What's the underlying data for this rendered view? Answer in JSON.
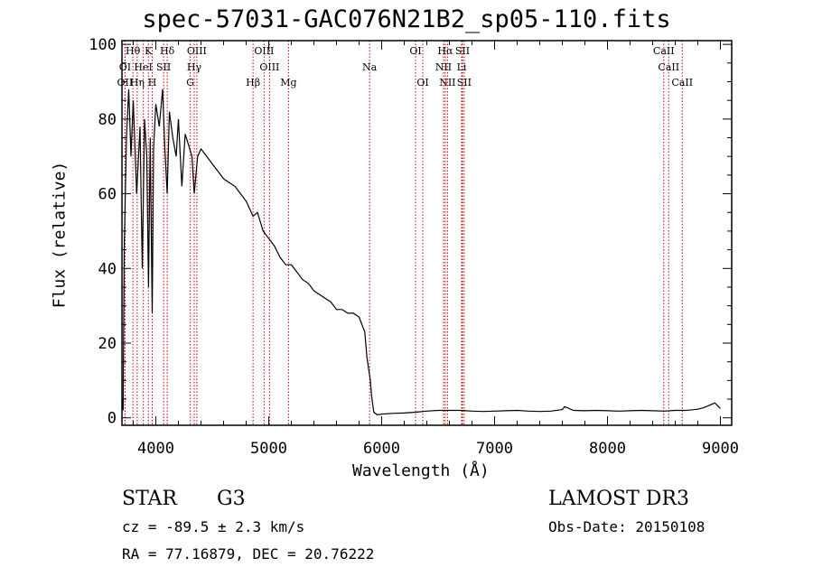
{
  "title": "spec-57031-GAC076N21B2_sp05-110.fits",
  "chart_data": {
    "type": "line",
    "title": "spec-57031-GAC076N21B2_sp05-110.fits",
    "xlabel": "Wavelength (Å)",
    "ylabel": "Flux (relative)",
    "xlim": [
      3700,
      9100
    ],
    "ylim": [
      -2,
      101
    ],
    "xticks": [
      4000,
      5000,
      6000,
      7000,
      8000,
      9000
    ],
    "yticks": [
      0,
      20,
      40,
      60,
      80,
      100
    ],
    "series": [
      {
        "name": "spectrum",
        "x": [
          3700,
          3710,
          3720,
          3740,
          3760,
          3780,
          3800,
          3830,
          3860,
          3880,
          3900,
          3920,
          3935,
          3950,
          3968,
          3980,
          4000,
          4030,
          4060,
          4080,
          4101,
          4120,
          4150,
          4180,
          4200,
          4230,
          4260,
          4290,
          4320,
          4340,
          4370,
          4400,
          4450,
          4500,
          4550,
          4600,
          4650,
          4700,
          4750,
          4800,
          4861,
          4900,
          4950,
          5000,
          5050,
          5100,
          5150,
          5200,
          5250,
          5300,
          5350,
          5400,
          5450,
          5500,
          5550,
          5600,
          5650,
          5700,
          5750,
          5800,
          5850,
          5870,
          5890,
          5900,
          5910,
          5930,
          5960,
          6000,
          6100,
          6200,
          6300,
          6400,
          6500,
          6600,
          6700,
          6800,
          6900,
          7000,
          7100,
          7200,
          7300,
          7400,
          7500,
          7600,
          7620,
          7700,
          7800,
          7900,
          8000,
          8100,
          8200,
          8300,
          8400,
          8500,
          8600,
          8700,
          8800,
          8850,
          8900,
          8950,
          9000
        ],
        "values": [
          5,
          2,
          45,
          75,
          88,
          70,
          85,
          60,
          78,
          40,
          80,
          70,
          35,
          75,
          28,
          72,
          84,
          78,
          88,
          72,
          60,
          82,
          75,
          70,
          80,
          62,
          76,
          73,
          70,
          60,
          70,
          72,
          70,
          68,
          66,
          64,
          63,
          62,
          60,
          58,
          54,
          55,
          50,
          48,
          46,
          43,
          41,
          41,
          39,
          37,
          36,
          34,
          33,
          32,
          31,
          29,
          29,
          28,
          28,
          27,
          23,
          16,
          12,
          10,
          6,
          1.5,
          0.8,
          1.0,
          1.2,
          1.3,
          1.5,
          1.8,
          2.0,
          2.0,
          2.0,
          1.8,
          1.7,
          1.8,
          1.9,
          2.0,
          1.8,
          1.7,
          1.8,
          2.2,
          3.0,
          2.0,
          1.9,
          2.0,
          1.9,
          1.8,
          1.9,
          2.0,
          1.9,
          1.8,
          2.0,
          2.0,
          2.3,
          2.7,
          3.3,
          4.0,
          2.5
        ]
      }
    ],
    "lines": [
      {
        "name": "Hθ",
        "x": 3797,
        "row": 0
      },
      {
        "name": "K",
        "x": 3934,
        "row": 0
      },
      {
        "name": "Hδ",
        "x": 4101,
        "row": 0
      },
      {
        "name": "OIII",
        "x": 4363,
        "row": 0
      },
      {
        "name": "OIII",
        "x": 4959,
        "row": 0
      },
      {
        "name": "OI",
        "x": 6300,
        "row": 0
      },
      {
        "name": "Hα",
        "x": 6563,
        "row": 0
      },
      {
        "name": "SII",
        "x": 6716,
        "row": 0
      },
      {
        "name": "CaII",
        "x": 8498,
        "row": 0
      },
      {
        "name": "OI",
        "x": 3727,
        "row": 1
      },
      {
        "name": "HeI",
        "x": 3889,
        "row": 1
      },
      {
        "name": "SII",
        "x": 4069,
        "row": 1
      },
      {
        "name": "Hγ",
        "x": 4340,
        "row": 1
      },
      {
        "name": "OIII",
        "x": 5007,
        "row": 1
      },
      {
        "name": "Na",
        "x": 5893,
        "row": 1
      },
      {
        "name": "NII",
        "x": 6548,
        "row": 1
      },
      {
        "name": "Li",
        "x": 6708,
        "row": 1
      },
      {
        "name": "CaII",
        "x": 8542,
        "row": 1
      },
      {
        "name": "OII",
        "x": 3727,
        "row": 2
      },
      {
        "name": "Hη",
        "x": 3835,
        "row": 2
      },
      {
        "name": "H",
        "x": 3968,
        "row": 2
      },
      {
        "name": "G",
        "x": 4305,
        "row": 2
      },
      {
        "name": "Hβ",
        "x": 4861,
        "row": 2
      },
      {
        "name": "Mg",
        "x": 5175,
        "row": 2
      },
      {
        "name": "OI",
        "x": 6364,
        "row": 2
      },
      {
        "name": "NII",
        "x": 6583,
        "row": 2
      },
      {
        "name": "SII",
        "x": 6731,
        "row": 2
      },
      {
        "name": "CaII",
        "x": 8662,
        "row": 2
      }
    ]
  },
  "info": {
    "object_class": "STAR",
    "subclass": "G3",
    "survey": "LAMOST DR3",
    "cz": "cz = -89.5 ± 2.3 km/s",
    "obs_date": "Obs-Date: 20150108",
    "coords": "RA =  77.16879, DEC =  20.76222"
  },
  "colors": {
    "line_marker": "#cc0000",
    "spectrum": "#000000"
  }
}
